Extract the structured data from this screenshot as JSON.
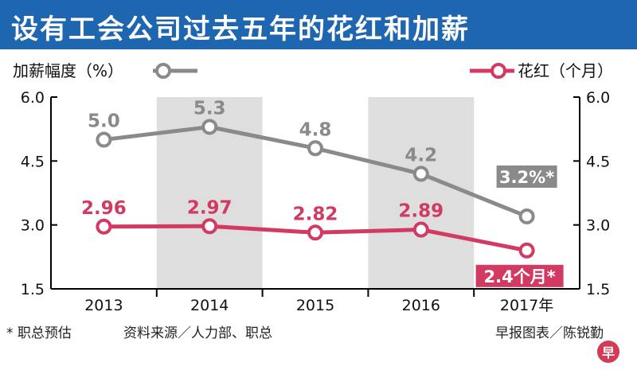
{
  "header": {
    "title": "设有工会公司过去五年的花红和加薪"
  },
  "colors": {
    "title_bg": "#1f66b0",
    "raise_series": "#8a8a8a",
    "bonus_series": "#d23a62",
    "year_band": "#dedede"
  },
  "chart_data": {
    "type": "line",
    "categories": [
      "2013",
      "2014",
      "2015",
      "2016",
      "2017年"
    ],
    "y_axis": {
      "min": 1.5,
      "max": 6.0,
      "ticks": [
        "6.0",
        "4.5",
        "3.0",
        "1.5"
      ],
      "tick_values": [
        6.0,
        4.5,
        3.0,
        1.5
      ]
    },
    "shaded_categories": [
      1,
      3
    ],
    "series": [
      {
        "name": "加薪幅度（%）",
        "color": "#8a8a8a",
        "values": [
          5.0,
          5.3,
          4.8,
          4.2,
          3.2
        ],
        "labels": [
          "5.0",
          "5.3",
          "4.8",
          "4.2",
          "3.2%*"
        ]
      },
      {
        "name": "花红（个月）",
        "color": "#d23a62",
        "values": [
          2.96,
          2.97,
          2.82,
          2.89,
          2.4
        ],
        "labels": [
          "2.96",
          "2.97",
          "2.82",
          "2.89",
          "2.4个月*"
        ]
      }
    ],
    "legend": {
      "left_label": "加薪幅度（%）",
      "right_label": "花红（个月）"
    }
  },
  "footer": {
    "note": "* 职总预估",
    "source": "资料来源／人力部、职总",
    "credit": "早报图表／陈锐勤",
    "stamp": "早"
  }
}
